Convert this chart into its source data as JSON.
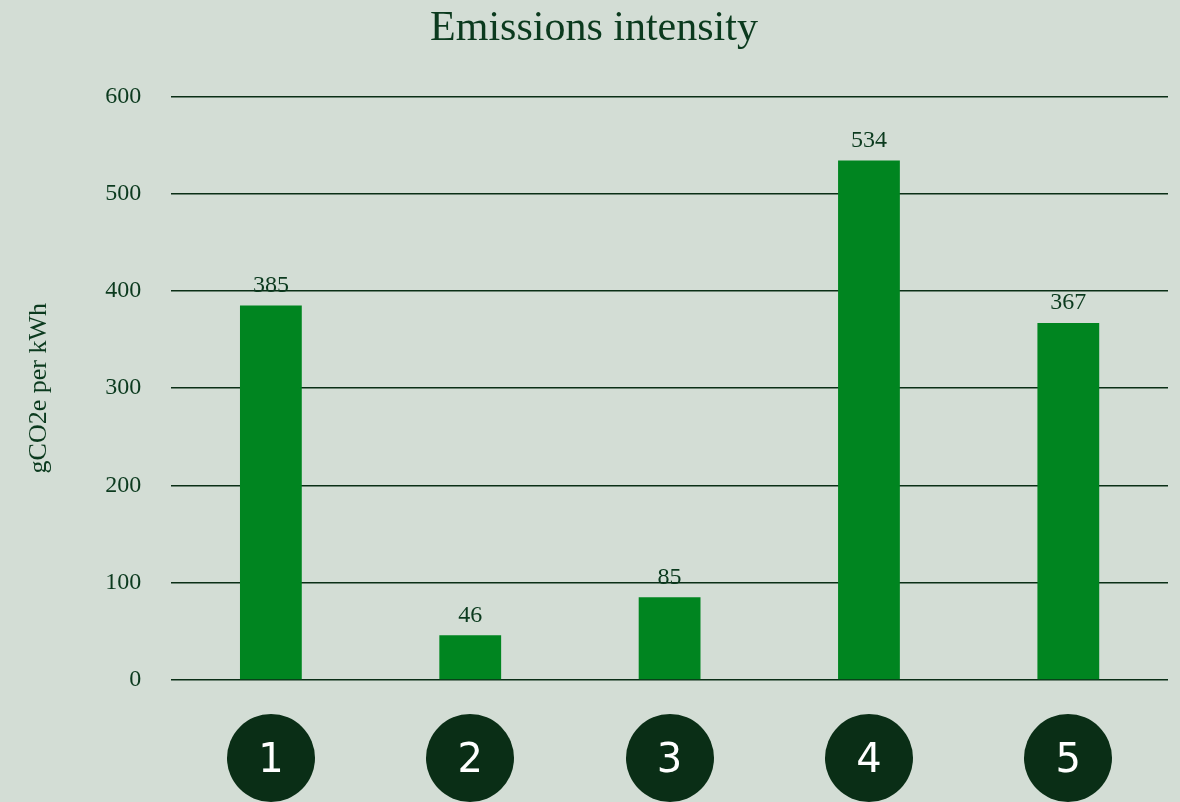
{
  "chart_data": {
    "type": "bar",
    "title": "Emissions intensity",
    "ylabel": "gCO2e per kWh",
    "categories": [
      "1",
      "2",
      "3",
      "4",
      "5"
    ],
    "values": [
      385,
      46,
      85,
      534,
      367
    ],
    "color": "#008520",
    "ylim": [
      0,
      600
    ],
    "yticks": [
      0,
      100,
      200,
      300,
      400,
      500,
      600
    ],
    "grid": "y",
    "data_labels": true
  }
}
